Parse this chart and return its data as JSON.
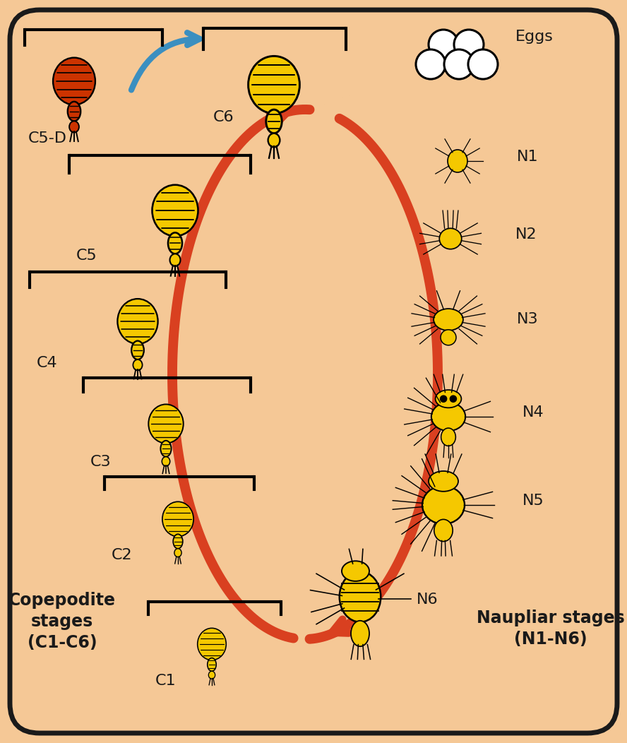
{
  "background_color": "#F5C896",
  "border_color": "#1A1A1A",
  "arrow_cycle_color": "#D94020",
  "arrow_blue_color": "#3B8FC0",
  "copepod_yellow": "#F5C800",
  "copepod_red": "#CC3300",
  "text_color": "#1A1A1A",
  "label_fontsize": 16,
  "bold_label_fontsize": 17,
  "stages_left": [
    "C5-D",
    "C5",
    "C4",
    "C3",
    "C2",
    "C1"
  ],
  "stages_right": [
    "Eggs",
    "N1",
    "N2",
    "N3",
    "N4",
    "N5",
    "N6"
  ],
  "stage_top": "C6",
  "copepodite_label": "Copepodite\nstages\n(C1-C6)",
  "naupliar_label": "Naupliar stages\n(N1-N6)"
}
